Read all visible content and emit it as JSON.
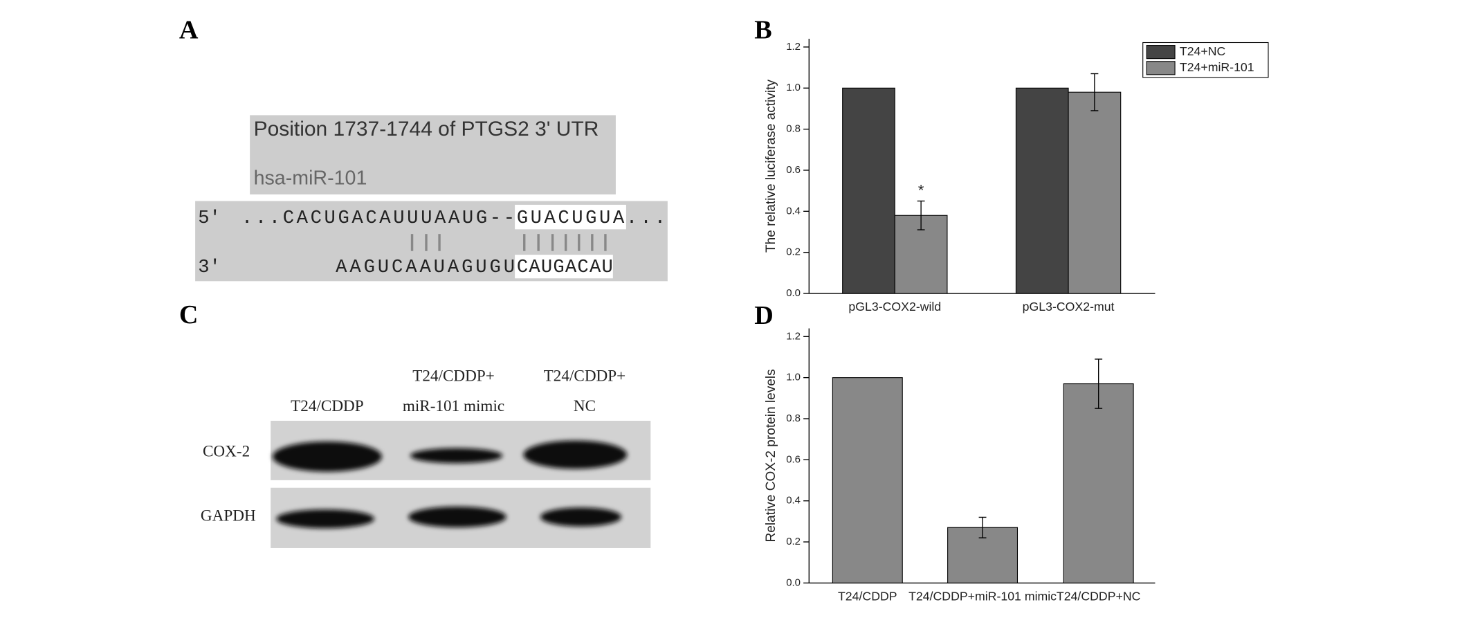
{
  "panel_a": {
    "label": "A",
    "title": "Position 1737-1744 of PTGS2 3' UTR",
    "mirna": "hsa-miR-101",
    "strand5": "5'",
    "seq5": [
      "...CACUGACAUUUAAUG--",
      "GUACUGUA",
      "..."
    ],
    "strand3": "3'",
    "seq3": [
      "AAGUCAAUAGUGU",
      "CAUGACAU"
    ]
  },
  "panel_c": {
    "label": "C",
    "columns": [
      [
        "T24/CDDP"
      ],
      [
        "T24/CDDP+",
        "miR-101 mimic"
      ],
      [
        "T24/CDDP+",
        "NC"
      ]
    ],
    "rows": [
      "COX-2",
      "GAPDH"
    ]
  },
  "chart_data": [
    {
      "panel": "B",
      "type": "bar",
      "ylabel": "The relative luciferase activity",
      "categories": [
        "pGL3-COX2-wild",
        "pGL3-COX2-mut"
      ],
      "series": [
        {
          "name": "T24+NC",
          "color": "#444444",
          "values": [
            1.0,
            1.0
          ]
        },
        {
          "name": "T24+miR-101",
          "color": "#888888",
          "values": [
            0.38,
            0.98
          ],
          "errors": [
            0.07,
            0.09
          ]
        }
      ],
      "annotations": [
        {
          "text": "*",
          "series": 1,
          "category": 0
        }
      ],
      "ylim": [
        0,
        1.24
      ],
      "yticks": [
        {
          "value": 0,
          "label": "0.0"
        },
        {
          "value": 0.2,
          "label": "0.2"
        },
        {
          "value": 0.4,
          "label": "0.4"
        },
        {
          "value": 0.6,
          "label": "0.6"
        },
        {
          "value": 0.8,
          "label": "0.8"
        },
        {
          "value": 1.0,
          "label": "1.0"
        },
        {
          "value": 1.2,
          "label": "1.2"
        }
      ],
      "legend": "upper right"
    },
    {
      "panel": "D",
      "type": "bar",
      "ylabel": "Relative COX-2 protein levels",
      "categories": [
        "T24/CDDP",
        "T24/CDDP+miR-101 mimic",
        "T24/CDDP+NC"
      ],
      "series": [
        {
          "color": "#888888",
          "values": [
            1.0,
            0.27,
            0.97
          ],
          "errors": [
            null,
            0.05,
            0.12
          ]
        }
      ],
      "ylim": [
        0,
        1.24
      ],
      "yticks": [
        {
          "value": 0,
          "label": "0.0"
        },
        {
          "value": 0.2,
          "label": "0.2"
        },
        {
          "value": 0.4,
          "label": "0.4"
        },
        {
          "value": 0.6,
          "label": "0.6"
        },
        {
          "value": 0.8,
          "label": "0.8"
        },
        {
          "value": 1.0,
          "label": "1.0"
        },
        {
          "value": 1.2,
          "label": "1.2"
        }
      ]
    }
  ]
}
